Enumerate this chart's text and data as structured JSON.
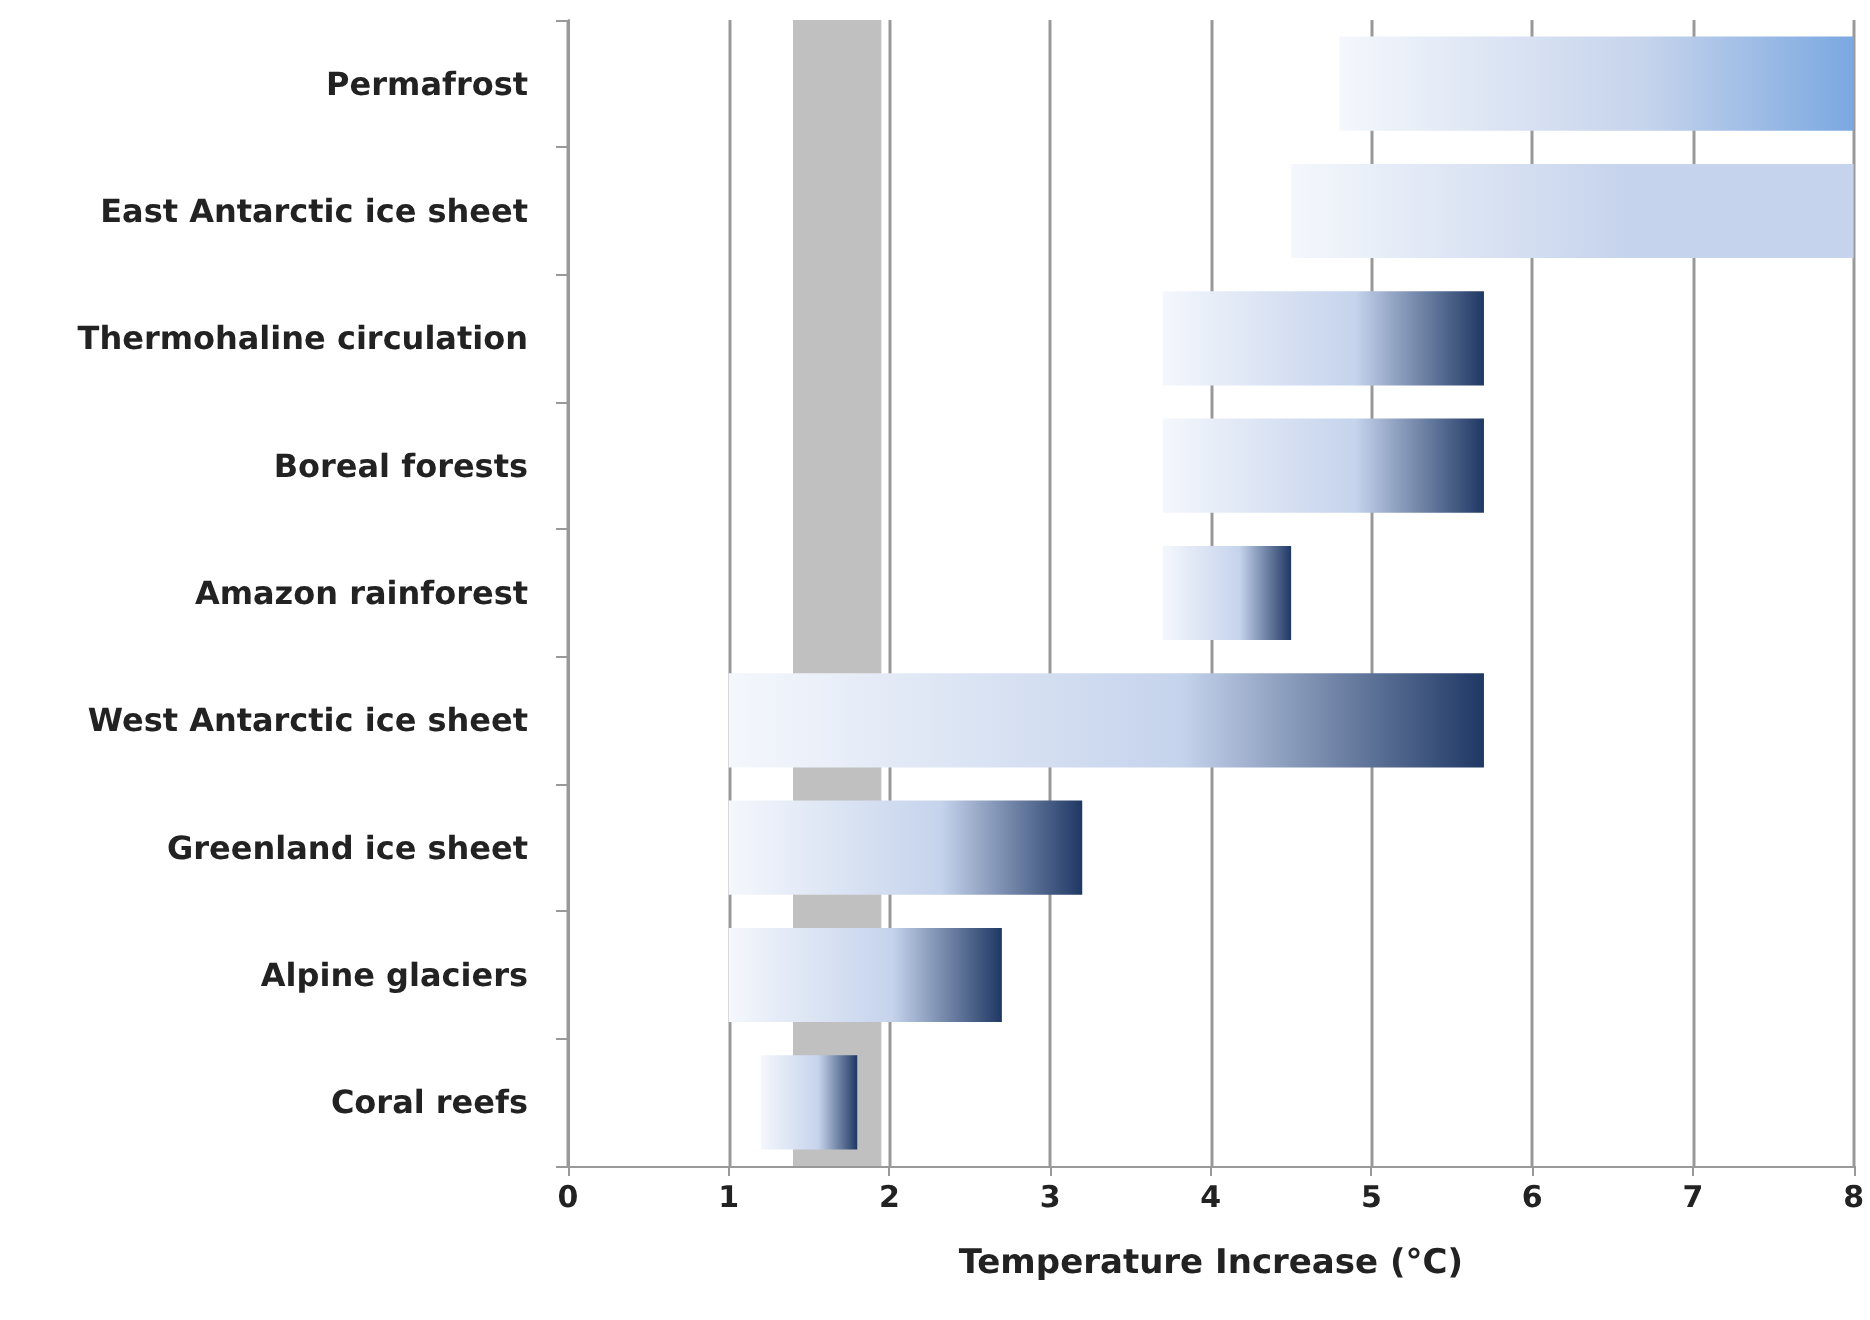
{
  "chart_data": {
    "type": "bar",
    "orientation": "horizontal",
    "xlabel": "Temperature Increase (°C)",
    "categories": [
      "Permafrost",
      "East Antarctic ice sheet",
      "Thermohaline circulation",
      "Boreal forests",
      "Amazon rainforest",
      "West Antarctic ice sheet",
      "Greenland ice sheet",
      "Alpine glaciers",
      "Coral reefs"
    ],
    "base": [
      4.8,
      4.5,
      3.7,
      3.7,
      3.7,
      1,
      1,
      1,
      1.2
    ],
    "values": [
      3.2,
      3.5,
      2.0,
      2.0,
      0.8,
      4.7,
      2.2,
      1.7,
      0.6
    ],
    "colors": [
      "#7aa8e0",
      "#c5d3ec",
      "#1f3864",
      "#1f3864",
      "#1f3864",
      "#1f3864",
      "#1f3864",
      "#1f3864",
      "#1f3864"
    ],
    "xlim": [
      0,
      8
    ],
    "xticks": [
      0,
      1,
      2,
      3,
      4,
      5,
      6,
      7,
      8
    ],
    "grid": "x",
    "bands": [
      {
        "axis": "x",
        "from": 1.4,
        "to": 1.95,
        "color": "#c0c0c0"
      }
    ]
  }
}
